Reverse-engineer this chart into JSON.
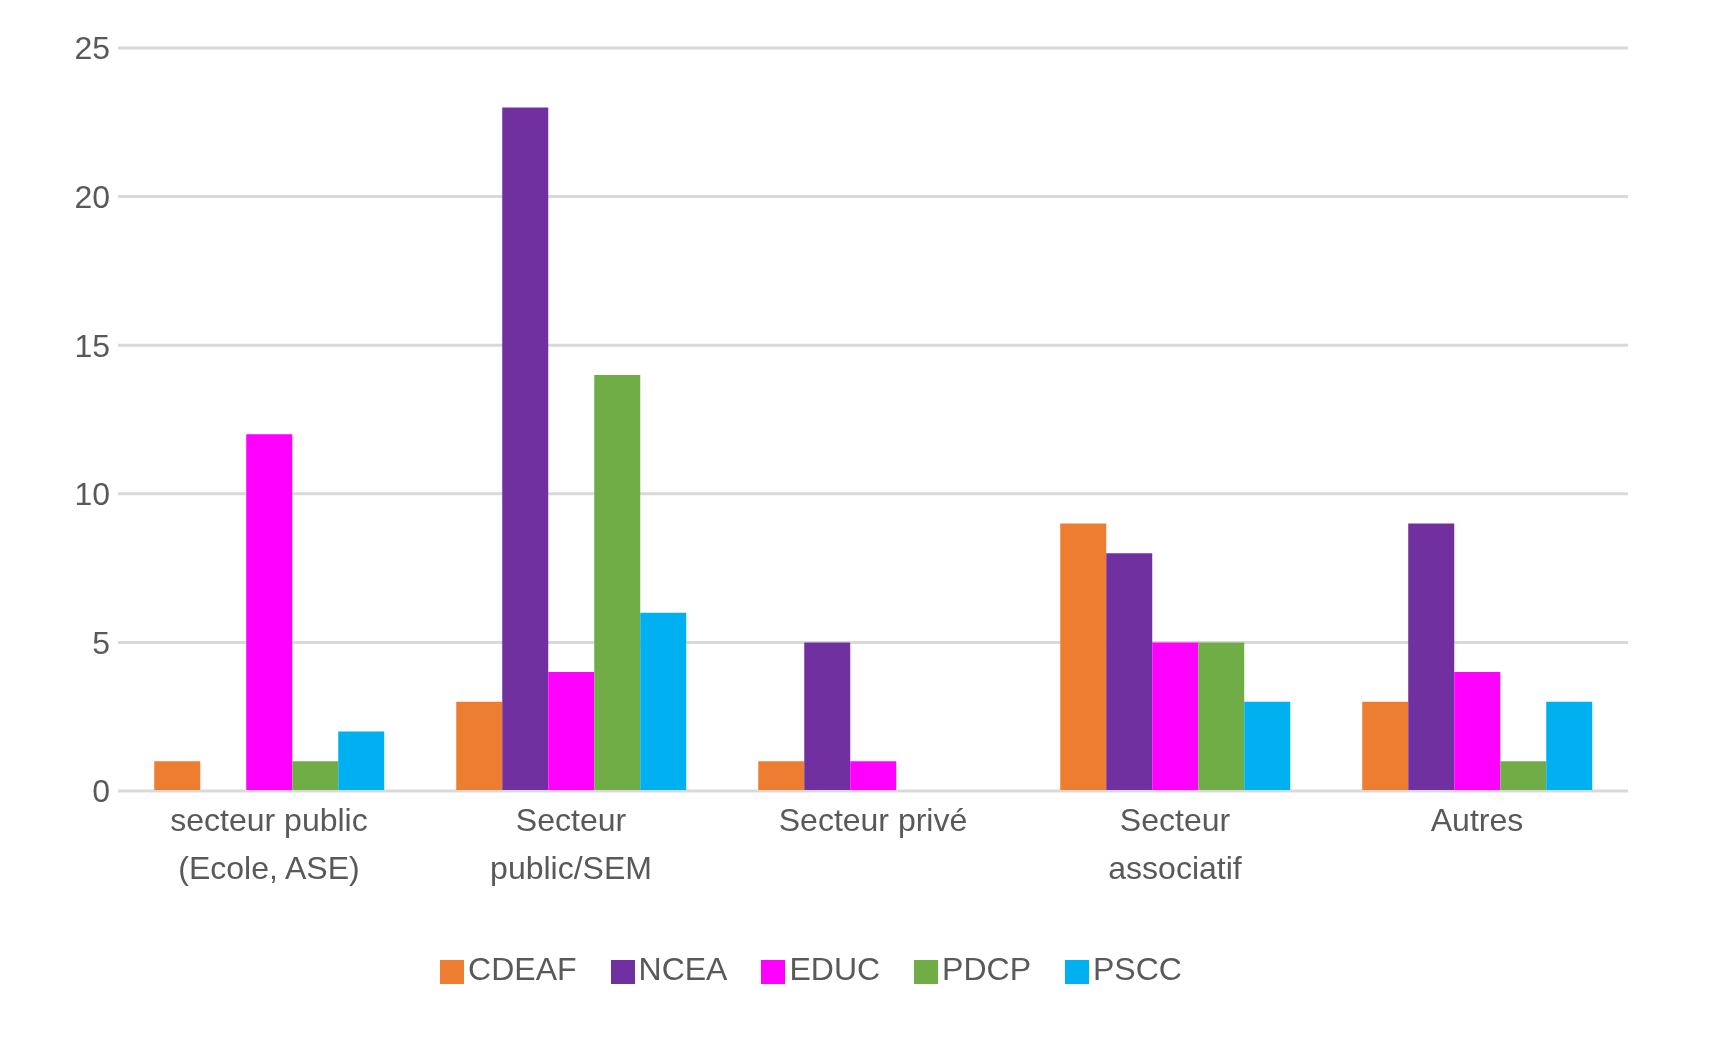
{
  "chart_data": {
    "type": "bar",
    "categories": [
      "secteur public (Ecole, ASE)",
      "Secteur public/SEM",
      "Secteur privé",
      "Secteur associatif",
      "Autres"
    ],
    "series": [
      {
        "name": "CDEAF",
        "color": "#ed7d31",
        "values": [
          1,
          3,
          1,
          9,
          3
        ]
      },
      {
        "name": "NCEA",
        "color": "#7030a0",
        "values": [
          0,
          23,
          5,
          8,
          9
        ]
      },
      {
        "name": "EDUC",
        "color": "#ff00ff",
        "values": [
          12,
          4,
          1,
          5,
          4
        ]
      },
      {
        "name": "PDCP",
        "color": "#70ad47",
        "values": [
          1,
          14,
          0,
          5,
          1
        ]
      },
      {
        "name": "PSCC",
        "color": "#00b0f0",
        "values": [
          2,
          6,
          0,
          3,
          3
        ]
      }
    ],
    "ylim": [
      0,
      25
    ],
    "yticks": [
      0,
      5,
      10,
      15,
      20,
      25
    ],
    "grid": "y",
    "legend": "bottom"
  }
}
